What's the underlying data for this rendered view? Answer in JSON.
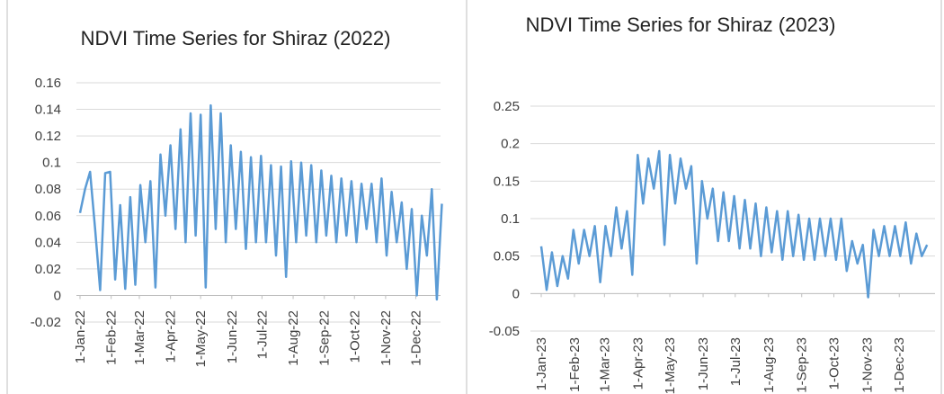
{
  "chart_data": [
    {
      "type": "line",
      "title": "NDVI Time Series for Shiraz (2022)",
      "x": [
        "2022-01-01",
        "2022-01-06",
        "2022-01-11",
        "2022-01-16",
        "2022-01-21",
        "2022-01-26",
        "2022-01-31",
        "2022-02-05",
        "2022-02-10",
        "2022-02-15",
        "2022-02-20",
        "2022-02-25",
        "2022-03-02",
        "2022-03-07",
        "2022-03-12",
        "2022-03-17",
        "2022-03-22",
        "2022-03-27",
        "2022-04-01",
        "2022-04-06",
        "2022-04-11",
        "2022-04-16",
        "2022-04-21",
        "2022-04-26",
        "2022-05-01",
        "2022-05-06",
        "2022-05-11",
        "2022-05-16",
        "2022-05-21",
        "2022-05-26",
        "2022-05-31",
        "2022-06-05",
        "2022-06-10",
        "2022-06-15",
        "2022-06-20",
        "2022-06-25",
        "2022-06-30",
        "2022-07-05",
        "2022-07-10",
        "2022-07-15",
        "2022-07-20",
        "2022-07-25",
        "2022-07-30",
        "2022-08-04",
        "2022-08-09",
        "2022-08-14",
        "2022-08-19",
        "2022-08-24",
        "2022-08-29",
        "2022-09-03",
        "2022-09-08",
        "2022-09-13",
        "2022-09-18",
        "2022-09-23",
        "2022-09-28",
        "2022-10-03",
        "2022-10-08",
        "2022-10-13",
        "2022-10-18",
        "2022-10-23",
        "2022-10-28",
        "2022-11-02",
        "2022-11-07",
        "2022-11-12",
        "2022-11-17",
        "2022-11-22",
        "2022-11-27",
        "2022-12-02",
        "2022-12-07",
        "2022-12-12",
        "2022-12-17",
        "2022-12-22",
        "2022-12-27"
      ],
      "series": [
        {
          "color": "#5b9bd5",
          "values": [
            0.062,
            0.08,
            0.093,
            0.05,
            0.004,
            0.092,
            0.093,
            0.012,
            0.068,
            0.005,
            0.074,
            0.008,
            0.083,
            0.04,
            0.086,
            0.006,
            0.106,
            0.06,
            0.113,
            0.05,
            0.125,
            0.04,
            0.137,
            0.045,
            0.136,
            0.006,
            0.143,
            0.05,
            0.137,
            0.04,
            0.113,
            0.05,
            0.108,
            0.035,
            0.104,
            0.04,
            0.105,
            0.04,
            0.098,
            0.03,
            0.097,
            0.014,
            0.101,
            0.04,
            0.1,
            0.045,
            0.098,
            0.04,
            0.094,
            0.045,
            0.09,
            0.04,
            0.088,
            0.045,
            0.086,
            0.04,
            0.084,
            0.05,
            0.084,
            0.04,
            0.088,
            0.03,
            0.078,
            0.04,
            0.07,
            0.02,
            0.065,
            0,
            0.06,
            0.03,
            0.08,
            -0.003,
            0.069
          ]
        }
      ],
      "xlim": [
        "2022-01-01",
        "2022-12-31"
      ],
      "xticks": [
        {
          "value": "2022-01-01",
          "label": "1-Jan-22"
        },
        {
          "value": "2022-02-01",
          "label": "1-Feb-22"
        },
        {
          "value": "2022-03-01",
          "label": "1-Mar-22"
        },
        {
          "value": "2022-04-01",
          "label": "1-Apr-22"
        },
        {
          "value": "2022-05-01",
          "label": "1-May-22"
        },
        {
          "value": "2022-06-01",
          "label": "1-Jun-22"
        },
        {
          "value": "2022-07-01",
          "label": "1-Jul-22"
        },
        {
          "value": "2022-08-01",
          "label": "1-Aug-22"
        },
        {
          "value": "2022-09-01",
          "label": "1-Sep-22"
        },
        {
          "value": "2022-10-01",
          "label": "1-Oct-22"
        },
        {
          "value": "2022-11-01",
          "label": "1-Nov-22"
        },
        {
          "value": "2022-12-01",
          "label": "1-Dec-22"
        }
      ],
      "ylim": [
        -0.02,
        0.16
      ],
      "yticks": [
        -0.02,
        0,
        0.02,
        0.04,
        0.06,
        0.08,
        0.1,
        0.12,
        0.14,
        0.16
      ],
      "grid": true
    },
    {
      "type": "line",
      "title": "NDVI Time Series for Shiraz (2023)",
      "x": [
        "2023-01-01",
        "2023-01-06",
        "2023-01-11",
        "2023-01-16",
        "2023-01-21",
        "2023-01-26",
        "2023-01-31",
        "2023-02-05",
        "2023-02-10",
        "2023-02-15",
        "2023-02-20",
        "2023-02-25",
        "2023-03-02",
        "2023-03-07",
        "2023-03-12",
        "2023-03-17",
        "2023-03-22",
        "2023-03-27",
        "2023-04-01",
        "2023-04-06",
        "2023-04-11",
        "2023-04-16",
        "2023-04-21",
        "2023-04-26",
        "2023-05-01",
        "2023-05-06",
        "2023-05-11",
        "2023-05-16",
        "2023-05-21",
        "2023-05-26",
        "2023-05-31",
        "2023-06-05",
        "2023-06-10",
        "2023-06-15",
        "2023-06-20",
        "2023-06-25",
        "2023-06-30",
        "2023-07-05",
        "2023-07-10",
        "2023-07-15",
        "2023-07-20",
        "2023-07-25",
        "2023-07-30",
        "2023-08-04",
        "2023-08-09",
        "2023-08-14",
        "2023-08-19",
        "2023-08-24",
        "2023-08-29",
        "2023-09-03",
        "2023-09-08",
        "2023-09-13",
        "2023-09-18",
        "2023-09-23",
        "2023-09-28",
        "2023-10-03",
        "2023-10-08",
        "2023-10-13",
        "2023-10-18",
        "2023-10-23",
        "2023-10-28",
        "2023-11-02",
        "2023-11-07",
        "2023-11-12",
        "2023-11-17",
        "2023-11-22",
        "2023-11-27",
        "2023-12-02",
        "2023-12-07",
        "2023-12-12",
        "2023-12-17",
        "2023-12-22",
        "2023-12-27"
      ],
      "series": [
        {
          "color": "#5b9bd5",
          "values": [
            0.063,
            0.005,
            0.055,
            0.01,
            0.05,
            0.02,
            0.085,
            0.04,
            0.085,
            0.05,
            0.09,
            0.015,
            0.09,
            0.05,
            0.115,
            0.06,
            0.11,
            0.025,
            0.185,
            0.12,
            0.18,
            0.14,
            0.19,
            0.065,
            0.185,
            0.12,
            0.18,
            0.14,
            0.17,
            0.04,
            0.15,
            0.1,
            0.14,
            0.07,
            0.135,
            0.07,
            0.13,
            0.06,
            0.125,
            0.06,
            0.12,
            0.05,
            0.115,
            0.055,
            0.11,
            0.045,
            0.11,
            0.05,
            0.105,
            0.045,
            0.1,
            0.045,
            0.1,
            0.05,
            0.1,
            0.045,
            0.1,
            0.03,
            0.07,
            0.04,
            0.065,
            -0.005,
            0.085,
            0.05,
            0.09,
            0.05,
            0.09,
            0.05,
            0.095,
            0.04,
            0.08,
            0.05,
            0.065
          ]
        }
      ],
      "xlim": [
        "2023-01-01",
        "2023-12-31"
      ],
      "xticks": [
        {
          "value": "2023-01-01",
          "label": "1-Jan-23"
        },
        {
          "value": "2023-02-01",
          "label": "1-Feb-23"
        },
        {
          "value": "2023-03-01",
          "label": "1-Mar-23"
        },
        {
          "value": "2023-04-01",
          "label": "1-Apr-23"
        },
        {
          "value": "2023-05-01",
          "label": "1-May-23"
        },
        {
          "value": "2023-06-01",
          "label": "1-Jun-23"
        },
        {
          "value": "2023-07-01",
          "label": "1-Jul-23"
        },
        {
          "value": "2023-08-01",
          "label": "1-Aug-23"
        },
        {
          "value": "2023-09-01",
          "label": "1-Sep-23"
        },
        {
          "value": "2023-10-01",
          "label": "1-Oct-23"
        },
        {
          "value": "2023-11-01",
          "label": "1-Nov-23"
        },
        {
          "value": "2023-12-01",
          "label": "1-Dec-23"
        }
      ],
      "ylim": [
        -0.05,
        0.25
      ],
      "yticks": [
        -0.05,
        0,
        0.05,
        0.1,
        0.15,
        0.2,
        0.25
      ],
      "grid": true
    }
  ]
}
